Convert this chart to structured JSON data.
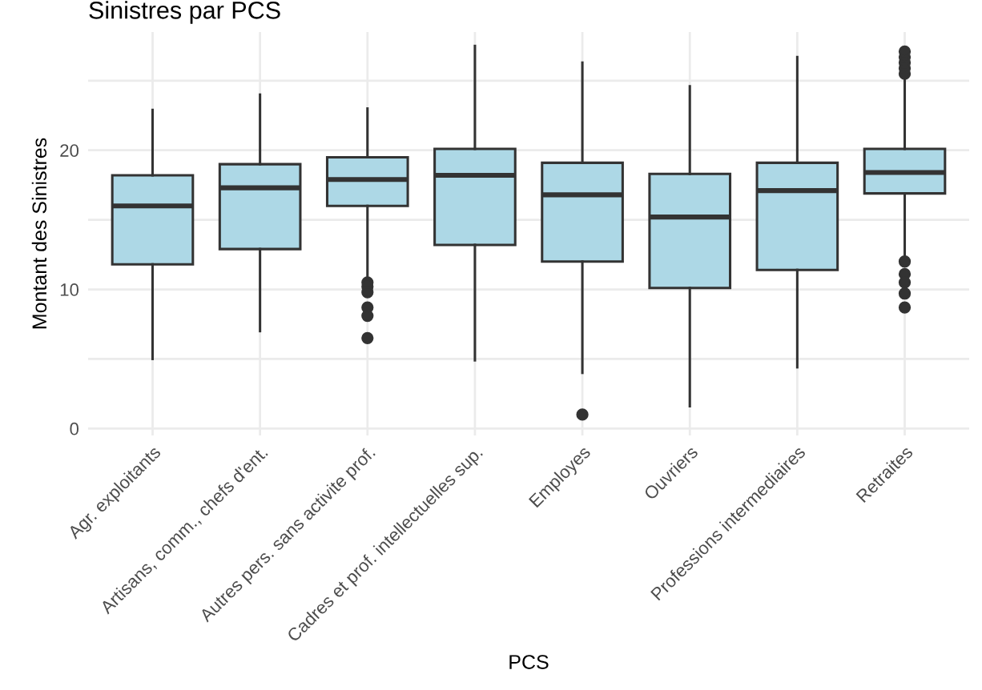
{
  "chart_data": {
    "type": "box",
    "title": "Sinistres par PCS",
    "xlabel": "PCS",
    "ylabel": "Montant des Sinistres",
    "categories": [
      "Agr. exploitants",
      "Artisans, comm., chefs d'ent.",
      "Autres pers. sans activite prof.",
      "Cadres et prof. intellectuelles sup.",
      "Employes",
      "Ouvriers",
      "Professions intermediaires",
      "Retraites"
    ],
    "series": [
      {
        "color": "#add8e6",
        "boxes": [
          {
            "low": 5.0,
            "q1": 11.8,
            "median": 16.0,
            "q3": 18.2,
            "high": 22.9
          },
          {
            "low": 7.0,
            "q1": 12.9,
            "median": 17.3,
            "q3": 19.0,
            "high": 24.0
          },
          {
            "low": 10.8,
            "q1": 16.0,
            "median": 17.9,
            "q3": 19.5,
            "high": 23.0,
            "outliers": [
              10.5,
              10.2,
              9.8,
              8.7,
              8.1,
              6.5
            ]
          },
          {
            "low": 4.9,
            "q1": 13.2,
            "median": 18.2,
            "q3": 20.1,
            "high": 27.5
          },
          {
            "low": 4.0,
            "q1": 12.0,
            "median": 16.8,
            "q3": 19.1,
            "high": 26.3,
            "outliers": [
              1.0
            ]
          },
          {
            "low": 1.6,
            "q1": 10.1,
            "median": 15.2,
            "q3": 18.3,
            "high": 24.6
          },
          {
            "low": 4.4,
            "q1": 11.4,
            "median": 17.1,
            "q3": 19.1,
            "high": 26.7
          },
          {
            "low": 12.2,
            "q1": 16.9,
            "median": 18.4,
            "q3": 20.1,
            "high": 25.2,
            "outliers": [
              25.5,
              25.9,
              26.3,
              26.7,
              27.1,
              12.0,
              11.1,
              10.5,
              9.7,
              8.7
            ]
          }
        ]
      }
    ],
    "ylim": [
      -0.5,
      28.5
    ],
    "yticks": [
      0,
      {
        "value": 5,
        "label": null
      },
      10,
      {
        "value": 15,
        "label": null
      },
      20,
      {
        "value": 25,
        "label": null
      }
    ],
    "grid": true
  }
}
